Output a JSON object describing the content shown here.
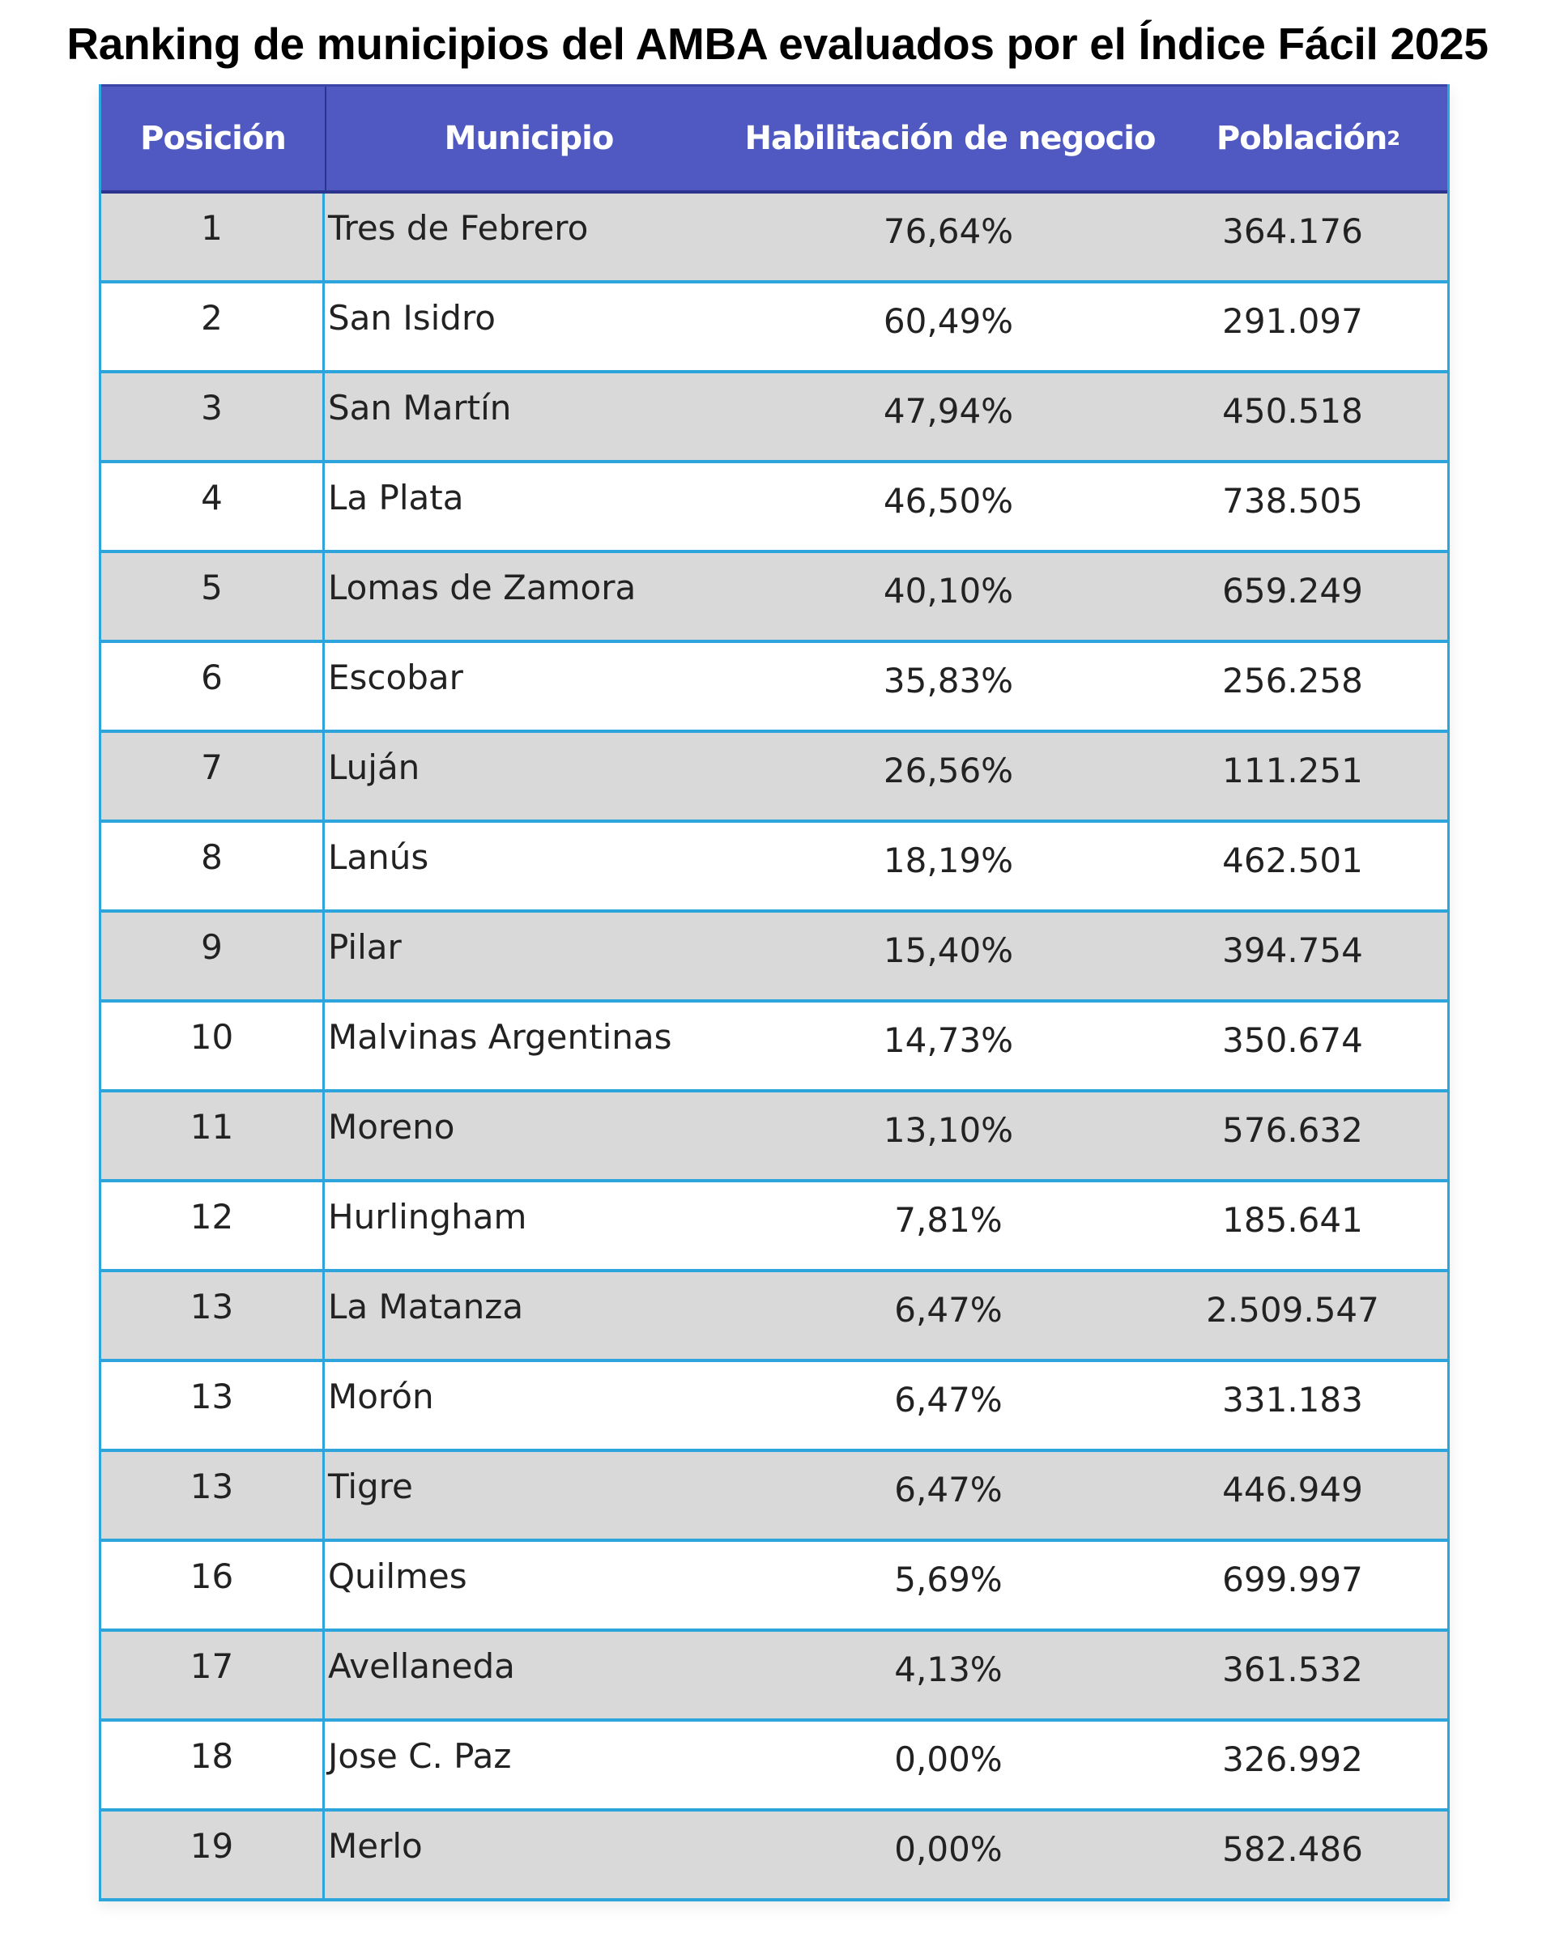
{
  "title": "Ranking de municipios del AMBA evaluados por el Índice Fácil 2025",
  "headers": {
    "posicion": "Posición",
    "municipio": "Municipio",
    "habilitacion": "Habilitación de negocio",
    "poblacion": "Población",
    "poblacion_sup": "2"
  },
  "colors": {
    "header_bg": "#5059c2",
    "row_alt": "#d9d9d9",
    "border": "#2ea4dd"
  },
  "rows": [
    {
      "pos": "1",
      "municipio": "Tres de Febrero",
      "habilitacion": "76,64%",
      "poblacion": "364.176"
    },
    {
      "pos": "2",
      "municipio": "San Isidro",
      "habilitacion": "60,49%",
      "poblacion": "291.097"
    },
    {
      "pos": "3",
      "municipio": "San Martín",
      "habilitacion": "47,94%",
      "poblacion": "450.518"
    },
    {
      "pos": "4",
      "municipio": "La Plata",
      "habilitacion": "46,50%",
      "poblacion": "738.505"
    },
    {
      "pos": "5",
      "municipio": "Lomas de Zamora",
      "habilitacion": "40,10%",
      "poblacion": "659.249"
    },
    {
      "pos": "6",
      "municipio": "Escobar",
      "habilitacion": "35,83%",
      "poblacion": "256.258"
    },
    {
      "pos": "7",
      "municipio": "Luján",
      "habilitacion": "26,56%",
      "poblacion": "111.251"
    },
    {
      "pos": "8",
      "municipio": "Lanús",
      "habilitacion": "18,19%",
      "poblacion": "462.501"
    },
    {
      "pos": "9",
      "municipio": "Pilar",
      "habilitacion": "15,40%",
      "poblacion": "394.754"
    },
    {
      "pos": "10",
      "municipio": "Malvinas Argentinas",
      "habilitacion": "14,73%",
      "poblacion": "350.674"
    },
    {
      "pos": "11",
      "municipio": "Moreno",
      "habilitacion": "13,10%",
      "poblacion": "576.632"
    },
    {
      "pos": "12",
      "municipio": "Hurlingham",
      "habilitacion": "7,81%",
      "poblacion": "185.641"
    },
    {
      "pos": "13",
      "municipio": "La Matanza",
      "habilitacion": "6,47%",
      "poblacion": "2.509.547"
    },
    {
      "pos": "13",
      "municipio": "Morón",
      "habilitacion": "6,47%",
      "poblacion": "331.183"
    },
    {
      "pos": "13",
      "municipio": "Tigre",
      "habilitacion": "6,47%",
      "poblacion": "446.949"
    },
    {
      "pos": "16",
      "municipio": "Quilmes",
      "habilitacion": "5,69%",
      "poblacion": "699.997"
    },
    {
      "pos": "17",
      "municipio": "Avellaneda",
      "habilitacion": "4,13%",
      "poblacion": "361.532"
    },
    {
      "pos": "18",
      "municipio": "Jose C. Paz",
      "habilitacion": "0,00%",
      "poblacion": "326.992"
    },
    {
      "pos": "19",
      "municipio": "Merlo",
      "habilitacion": "0,00%",
      "poblacion": "582.486"
    }
  ]
}
